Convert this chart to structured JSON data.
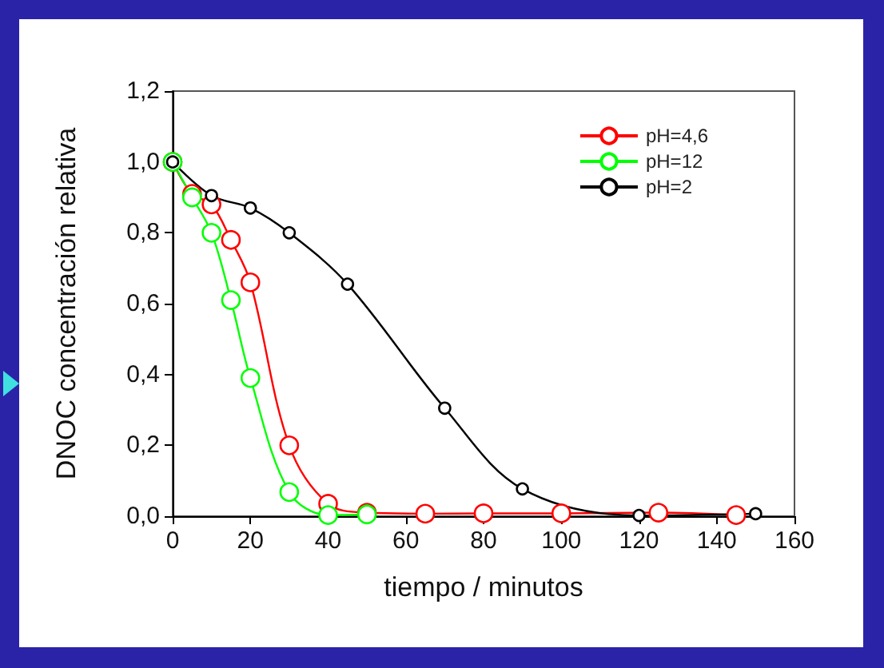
{
  "chart_data": {
    "type": "line",
    "xlabel": "tiempo / minutos",
    "ylabel": "DNOC concentración relativa",
    "xlim": [
      0,
      160
    ],
    "xticks": [
      0,
      20,
      40,
      60,
      80,
      100,
      120,
      140,
      160
    ],
    "ylim": [
      0,
      1.2
    ],
    "yticks": [
      {
        "value": 0,
        "label": "0,0"
      },
      {
        "value": 0.2,
        "label": "0,2"
      },
      {
        "value": 0.4,
        "label": "0,4"
      },
      {
        "value": 0.6,
        "label": "0,6"
      },
      {
        "value": 0.8,
        "label": "0,8"
      },
      {
        "value": 1,
        "label": "1,0"
      },
      {
        "value": 1.2,
        "label": "1,2"
      }
    ],
    "grid": false,
    "legend": "top right",
    "marker": "circle",
    "line_style": "solid",
    "series": [
      {
        "name": "pH=4,6",
        "color": "#ff0000",
        "x": [
          0,
          5,
          10,
          15,
          20,
          30,
          40,
          50,
          65,
          80,
          100,
          125,
          145
        ],
        "values": [
          1,
          0.91,
          0.88,
          0.78,
          0.66,
          0.2,
          0.035,
          0.01,
          0.007,
          0.008,
          0.008,
          0.01,
          0.003
        ]
      },
      {
        "name": "pH=12",
        "color": "#00ff00",
        "x": [
          0,
          5,
          10,
          15,
          20,
          30,
          40,
          50
        ],
        "values": [
          1,
          0.9,
          0.8,
          0.61,
          0.39,
          0.068,
          0.003,
          0.005
        ]
      },
      {
        "name": "pH=2",
        "color": "#000000",
        "x": [
          0,
          10,
          20,
          30,
          45,
          70,
          90,
          120,
          150
        ],
        "values": [
          1,
          0.905,
          0.87,
          0.8,
          0.655,
          0.305,
          0.077,
          0.002,
          0.007
        ]
      }
    ]
  }
}
